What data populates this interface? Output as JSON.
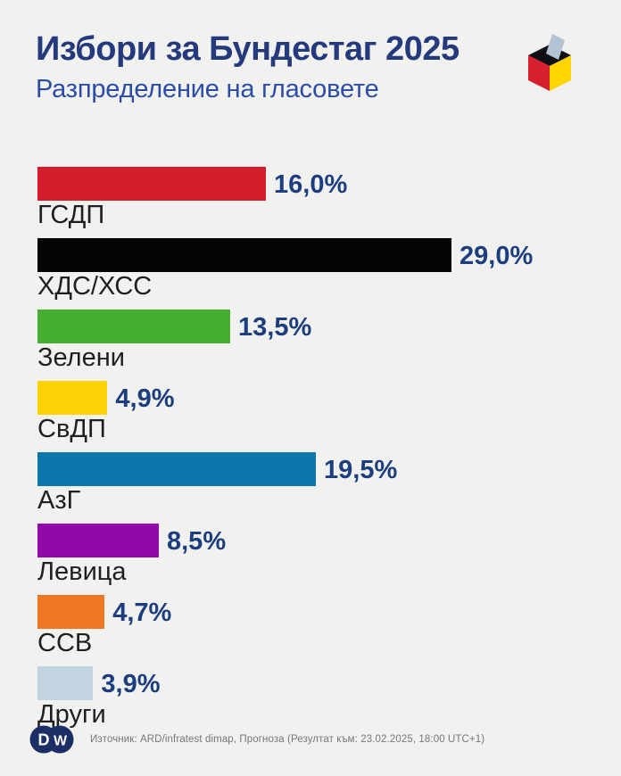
{
  "header": {
    "title": "Избори за Бундестаг 2025",
    "subtitle": "Разпределение на гласовете"
  },
  "chart_data": {
    "type": "bar",
    "orientation": "horizontal",
    "title": "Избори за Бундестаг 2025",
    "subtitle": "Разпределение на гласовете",
    "unit": "%",
    "xlim": [
      0,
      29
    ],
    "grid": false,
    "legend": "none",
    "categories": [
      "ГСДП",
      "ХДС/ХСС",
      "Зелени",
      "СвДП",
      "АзГ",
      "Левица",
      "ССВ",
      "Други"
    ],
    "values": [
      16.0,
      29.0,
      13.5,
      4.9,
      19.5,
      8.5,
      4.7,
      3.9
    ],
    "value_labels": [
      "16,0%",
      "29,0%",
      "13,5%",
      "4,9%",
      "19,5%",
      "8,5%",
      "4,7%",
      "3,9%"
    ],
    "colors": [
      "#d51c2c",
      "#050505",
      "#46ae33",
      "#fcd205",
      "#0d77ab",
      "#9109a8",
      "#ef7724",
      "#c2d4e2"
    ]
  },
  "icons": {
    "ballot_box": "ballot-box-icon",
    "dw_logo": "dw-logo"
  },
  "footer": {
    "source": "Източник: ARD/infratest dimap, Прогноза (Резултат към: 23.02.2025, 18:00 UTC+1)"
  },
  "colors": {
    "background": "#f1f1ef",
    "title_text": "#243a7c",
    "subtitle_text": "#2b4da6",
    "value_text": "#1c3d7e",
    "label_text": "#1f1f1f",
    "footer_text": "#73787e",
    "dw_navy": "#1b2f66",
    "ballot_top": "#0e0e14",
    "ballot_left": "#d6202e",
    "ballot_right": "#ffd400",
    "ballot_paper": "#b3c3d3"
  }
}
